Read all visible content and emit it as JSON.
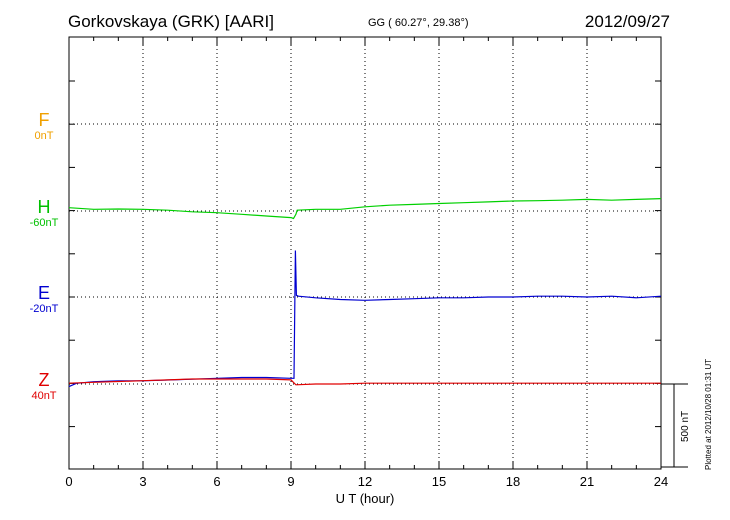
{
  "header": {
    "title": "Gorkovskaya (GRK)  [AARI]",
    "coords": "GG ( 60.27°,  29.38°)",
    "date": "2012/09/27"
  },
  "components": [
    {
      "letter": "F",
      "offset": "0nT",
      "color": "#f0a000"
    },
    {
      "letter": "H",
      "offset": "-60nT",
      "color": "#00c000"
    },
    {
      "letter": "E",
      "offset": "-20nT",
      "color": "#0000d0"
    },
    {
      "letter": "Z",
      "offset": "40nT",
      "color": "#e00000"
    }
  ],
  "scale_bar": "500 nT",
  "plotted_note": "Plotted at 2012/10/28 01:31  UT",
  "chart_data": {
    "type": "line",
    "xlabel": "U T (hour)",
    "xlim": [
      0,
      24
    ],
    "x_ticks": [
      "0",
      "3",
      "6",
      "9",
      "12",
      "15",
      "18",
      "21",
      "24"
    ],
    "grid": true,
    "series": [
      {
        "name": "H",
        "color": "#00d000",
        "x": [
          0,
          1,
          2,
          3,
          4,
          5,
          6,
          7,
          8,
          9,
          9.1,
          9.2,
          9.25,
          10,
          11,
          12,
          13,
          14,
          15,
          16,
          17,
          18,
          19,
          20,
          21,
          22,
          23,
          24
        ],
        "y": [
          20,
          10,
          12,
          10,
          5,
          -5,
          -10,
          -20,
          -30,
          -40,
          -45,
          -20,
          5,
          10,
          10,
          25,
          35,
          40,
          45,
          50,
          55,
          60,
          62,
          65,
          70,
          65,
          70,
          75
        ]
      },
      {
        "name": "E",
        "color": "#0000d0",
        "x": [
          0,
          0.3,
          1,
          2,
          3,
          4,
          5,
          6,
          7,
          8,
          9,
          9.12,
          9.18,
          9.22,
          9.3,
          10,
          11,
          12,
          13,
          14,
          15,
          16,
          17,
          18,
          19,
          20,
          21,
          22,
          23,
          24
        ],
        "y": [
          -540,
          -520,
          -510,
          -505,
          -505,
          -500,
          -495,
          -490,
          -485,
          -485,
          -490,
          -490,
          280,
          10,
          5,
          -5,
          -15,
          -20,
          -15,
          -10,
          -5,
          -5,
          0,
          0,
          5,
          5,
          0,
          5,
          -5,
          5
        ]
      },
      {
        "name": "Z",
        "color": "#e00000",
        "x": [
          0,
          1,
          2,
          3,
          4,
          5,
          6,
          7,
          8,
          9,
          9.2,
          10,
          11,
          12,
          13,
          14,
          15,
          16,
          17,
          18,
          19,
          20,
          21,
          22,
          23,
          24
        ],
        "y": [
          5,
          10,
          15,
          20,
          25,
          30,
          30,
          30,
          30,
          25,
          -5,
          0,
          0,
          5,
          5,
          5,
          5,
          5,
          5,
          5,
          5,
          5,
          5,
          5,
          5,
          5
        ]
      }
    ]
  }
}
